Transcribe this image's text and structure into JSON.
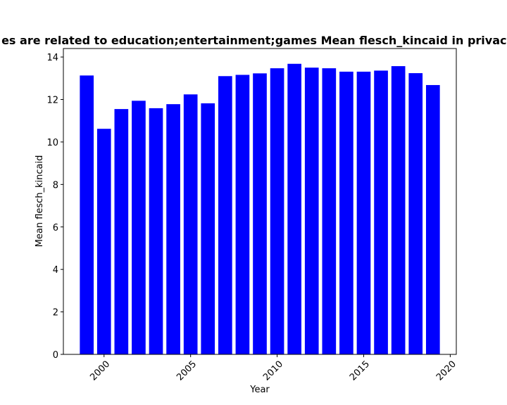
{
  "chart_data": {
    "type": "bar",
    "title": "es are related to education;entertainment;games Mean flesch_kincaid in privacy",
    "xlabel": "Year",
    "ylabel": "Mean flesch_kincaid",
    "x": [
      1999,
      2000,
      2001,
      2002,
      2003,
      2004,
      2005,
      2006,
      2007,
      2008,
      2009,
      2010,
      2011,
      2012,
      2013,
      2014,
      2015,
      2016,
      2017,
      2018,
      2019
    ],
    "values": [
      13.13,
      10.62,
      11.55,
      11.94,
      11.59,
      11.78,
      12.24,
      11.82,
      13.1,
      13.16,
      13.23,
      13.47,
      13.68,
      13.5,
      13.47,
      13.31,
      13.31,
      13.36,
      13.57,
      13.24,
      12.68
    ],
    "xlim": [
      1997.65,
      2020.35
    ],
    "ylim": [
      0,
      14.4
    ],
    "x_ticks": [
      2000,
      2005,
      2010,
      2015,
      2020
    ],
    "y_ticks": [
      0,
      2,
      4,
      6,
      8,
      10,
      12,
      14
    ],
    "bar_color": "#0000ff",
    "grid": false,
    "legend": "none"
  }
}
